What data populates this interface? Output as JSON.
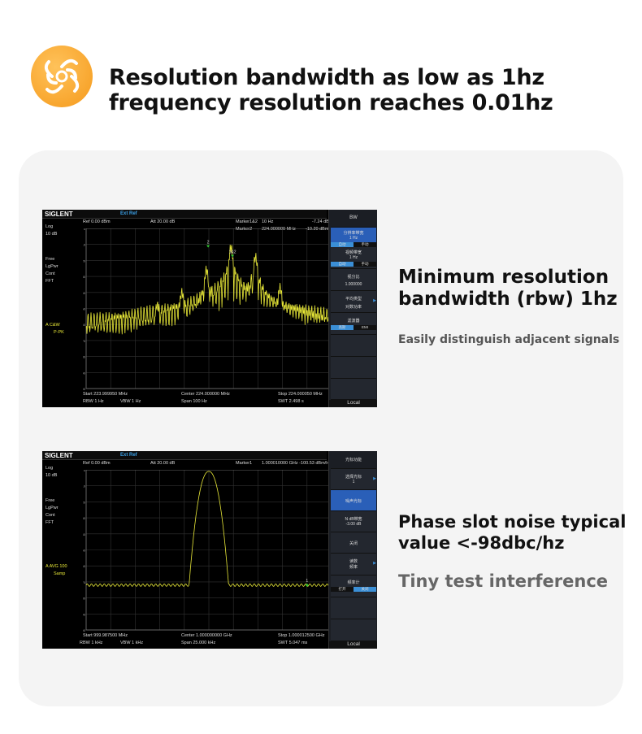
{
  "header": {
    "line1": "Resolution bandwidth as low as 1hz",
    "line2": "frequency resolution reaches 0.01hz"
  },
  "colors": {
    "accent": "#f5a02a",
    "trace": "#e8e838",
    "menu_selected": "#2a5fb8",
    "ext_ref": "#3ba0e6"
  },
  "feature1": {
    "title1": "Minimum resolution",
    "title2": "bandwidth (rbw) 1hz",
    "subtitle": "Easily distinguish adjacent signals"
  },
  "feature2": {
    "title1": "Phase slot noise typical",
    "title2": "value <-98dbc/hz",
    "subtitle": "Tiny test interference"
  },
  "scope1": {
    "brand": "SIGLENT",
    "ext_ref": "Ext Ref",
    "ref": "Ref  0.00 dBm",
    "att": "Att  20.00 dB",
    "marker_a_label": "Marker1&2",
    "marker_a_freq": "10 Hz",
    "marker_a_val": "-7.24 dB",
    "marker_b_label": "Marker2",
    "marker_b_freq": "224.000000 MHz",
    "marker_b_val": "-10.20 dBm",
    "scale": "Log",
    "div": "10 dB",
    "left": [
      "Free",
      "LgPwr",
      "Cont",
      "FFT"
    ],
    "trace_a": "A  C&W",
    "trace_mode": "P-PK",
    "marker_tags": [
      "2",
      "1&2"
    ],
    "yticks": [
      "0",
      "-10",
      "-20",
      "-30",
      "-40",
      "-50",
      "-60",
      "-70",
      "-80",
      "-90",
      "-100"
    ],
    "start": "Start  223.999950 MHz",
    "center": "Center  224.000000 MHz",
    "stop": "Stop  224.000050 MHz",
    "rbw": "RBW  1 Hz",
    "vbw": "VBW  1 Hz",
    "span": "Span   100 Hz",
    "swt": "SWT  2.498 s",
    "menu": {
      "title": "BW",
      "items": [
        {
          "label": "分辨率带宽",
          "value": "1 Hz",
          "toggle": [
            "自动",
            "手动"
          ]
        },
        {
          "label": "视频带宽",
          "value": "1 Hz",
          "toggle": [
            "自动",
            "手动"
          ]
        },
        {
          "label": "视分比",
          "value": "1.000000"
        },
        {
          "label": "平均类型",
          "value": "对数功率"
        },
        {
          "label": "滤波器",
          "toggle": [
            "高斯",
            "EMI"
          ]
        }
      ],
      "local": "Local"
    }
  },
  "scope2": {
    "brand": "SIGLENT",
    "ext_ref": "Ext Ref",
    "ref": "Ref  0.00 dBm",
    "att": "Att  20.00 dB",
    "marker_label": "Marker1",
    "marker_val": "1.000010000 GHz -100.53 dBm/Hz",
    "scale": "Log",
    "div": "10 dB",
    "left": [
      "Free",
      "LgPwr",
      "Cont",
      "FFT"
    ],
    "trace_a": "A  AVG 100",
    "trace_mode": "Samp",
    "marker_tags": [
      "1"
    ],
    "yticks": [
      "0",
      "-10",
      "-20",
      "-30",
      "-40",
      "-50",
      "-60",
      "-70",
      "-80",
      "-90",
      "-100"
    ],
    "start": "Start  999.987500 MHz",
    "center": "Center  1.000000000 GHz",
    "stop": "Stop  1.000012500 GHz",
    "rbw": "RBW  1 kHz",
    "vbw": "VBW  1 kHz",
    "span": "Span   25.000 kHz",
    "swt": "SWT  5.047 ms",
    "menu": {
      "title": "光标功能",
      "items": [
        {
          "label": "选择光标",
          "value": "1"
        },
        {
          "label": "噪声光标"
        },
        {
          "label": "N dB带宽",
          "value": "-3.00 dB"
        },
        {
          "label": "关闭"
        },
        {
          "label": "读数",
          "value": "频率"
        },
        {
          "label": "频率计",
          "toggle": [
            "打开",
            "关闭"
          ]
        }
      ],
      "local": "Local"
    }
  }
}
